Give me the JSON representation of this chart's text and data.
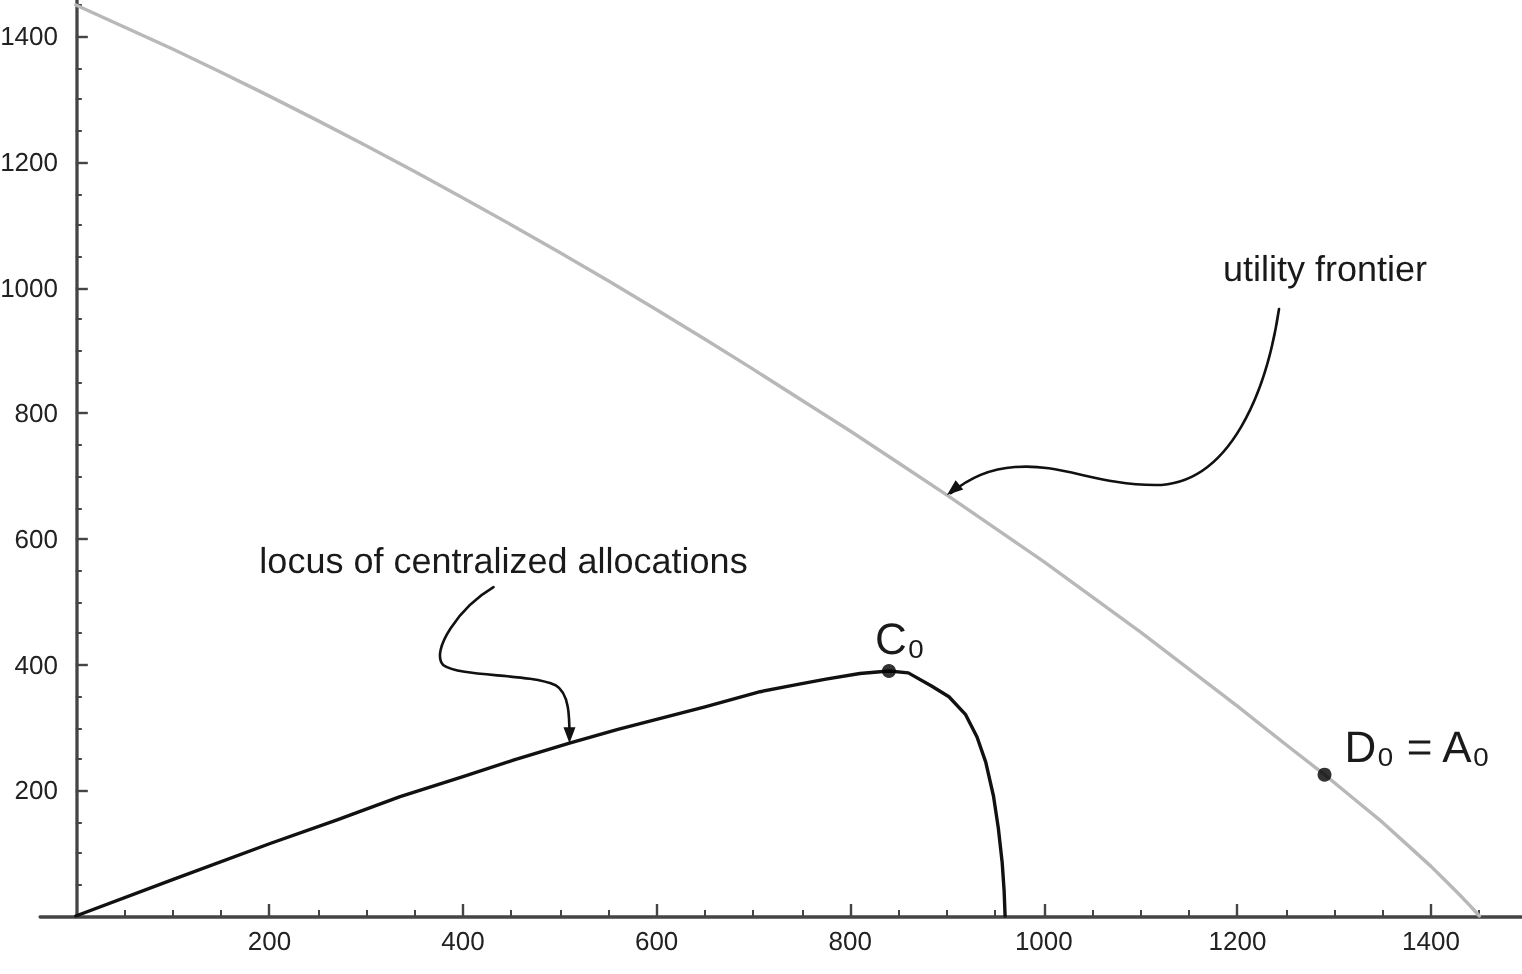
{
  "chart_data": {
    "type": "line",
    "xlim": [
      -37,
      1494
    ],
    "ylim": [
      0,
      1458
    ],
    "xticks": [
      {
        "value": 50,
        "label": null
      },
      {
        "value": 100,
        "label": null
      },
      {
        "value": 150,
        "label": null
      },
      200,
      {
        "value": 250,
        "label": null
      },
      {
        "value": 300,
        "label": null
      },
      {
        "value": 350,
        "label": null
      },
      400,
      {
        "value": 450,
        "label": null
      },
      {
        "value": 500,
        "label": null
      },
      {
        "value": 550,
        "label": null
      },
      600,
      {
        "value": 650,
        "label": null
      },
      {
        "value": 700,
        "label": null
      },
      {
        "value": 750,
        "label": null
      },
      800,
      {
        "value": 850,
        "label": null
      },
      {
        "value": 900,
        "label": null
      },
      {
        "value": 950,
        "label": null
      },
      1000,
      {
        "value": 1050,
        "label": null
      },
      {
        "value": 1100,
        "label": null
      },
      {
        "value": 1150,
        "label": null
      },
      1200,
      {
        "value": 1250,
        "label": null
      },
      {
        "value": 1300,
        "label": null
      },
      {
        "value": 1350,
        "label": null
      },
      1400,
      {
        "value": 1450,
        "label": null
      }
    ],
    "yticks": [
      {
        "value": 50,
        "label": null
      },
      {
        "value": 100,
        "label": null
      },
      {
        "value": 150,
        "label": null
      },
      200,
      {
        "value": 250,
        "label": null
      },
      {
        "value": 300,
        "label": null
      },
      {
        "value": 350,
        "label": null
      },
      400,
      {
        "value": 450,
        "label": null
      },
      {
        "value": 500,
        "label": null
      },
      {
        "value": 550,
        "label": null
      },
      600,
      {
        "value": 650,
        "label": null
      },
      {
        "value": 700,
        "label": null
      },
      {
        "value": 750,
        "label": null
      },
      800,
      {
        "value": 850,
        "label": null
      },
      {
        "value": 900,
        "label": null
      },
      {
        "value": 950,
        "label": null
      },
      1000,
      {
        "value": 1050,
        "label": null
      },
      {
        "value": 1100,
        "label": null
      },
      {
        "value": 1150,
        "label": null
      },
      1200,
      {
        "value": 1250,
        "label": null
      },
      {
        "value": 1300,
        "label": null
      },
      {
        "value": 1350,
        "label": null
      },
      1400,
      {
        "value": 1450,
        "label": null
      }
    ],
    "series": [
      {
        "color": "#b8b8b8",
        "x": [
          0,
          50,
          100,
          150,
          200,
          250,
          300,
          350,
          400,
          450,
          500,
          550,
          600,
          650,
          700,
          750,
          800,
          850,
          900,
          950,
          1000,
          1050,
          1100,
          1150,
          1200,
          1250,
          1290,
          1320,
          1350,
          1375,
          1400,
          1415,
          1430,
          1440,
          1450
        ],
        "values": [
          1450,
          1415,
          1380,
          1343,
          1305,
          1266,
          1226,
          1185,
          1143,
          1100,
          1056,
          1011,
          965,
          918,
          870,
          821,
          772,
          721,
          670,
          617,
          564,
          508,
          452,
          393,
          334,
          273,
          225,
          187,
          149,
          114,
          79,
          56,
          33,
          17,
          0
        ]
      },
      {
        "color": "#111111",
        "x": [
          0,
          100,
          200,
          270,
          335,
          400,
          452,
          510,
          560,
          600,
          650,
          707,
          750,
          775,
          810,
          840,
          860,
          884,
          902,
          919,
          931,
          940,
          948,
          953,
          957,
          959,
          960
        ],
        "values": [
          0,
          58,
          115,
          153,
          190,
          222,
          248,
          275,
          297,
          313,
          333,
          357,
          370,
          377,
          386,
          390,
          387,
          366,
          349,
          321,
          285,
          245,
          191,
          140,
          85,
          40,
          0
        ]
      },
      {
        "type": "scatter",
        "color": "#000000",
        "marker": "circle",
        "x": [
          840,
          1290
        ],
        "values": [
          390,
          225
        ]
      }
    ],
    "annotations": [
      {
        "text": "utility frontier",
        "x": 900,
        "y": 670
      },
      {
        "text": "locus of centralized allocations",
        "x": 510,
        "y": 275
      },
      {
        "text": "C₀",
        "x": 840,
        "y": 390
      },
      {
        "text": "D₀ = A₀",
        "x": 1290,
        "y": 225
      }
    ]
  }
}
